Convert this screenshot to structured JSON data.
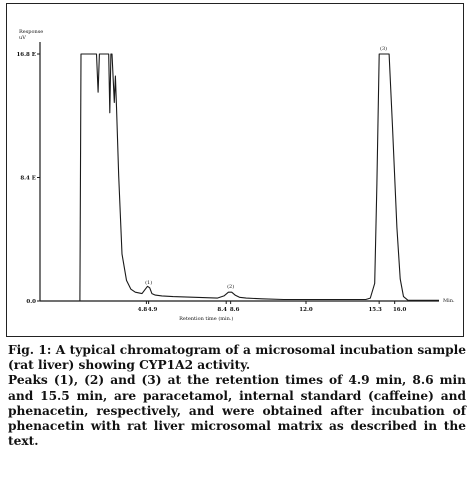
{
  "chart_data": {
    "type": "line",
    "ylabel": "Response\nuV",
    "xlabel": "Retention time (min.)",
    "x_unit_label": "Min.",
    "xlim": [
      0,
      18
    ],
    "ylim": [
      0,
      16.8
    ],
    "y_ticks": [
      {
        "value": 16.8,
        "label": "16.8 E"
      },
      {
        "value": 8.4,
        "label": "8.4 E"
      },
      {
        "value": 0,
        "label": "0.0"
      }
    ],
    "x_ticks": [
      {
        "value": 4.8,
        "label": "4.8"
      },
      {
        "value": 4.9,
        "label": "4.9"
      },
      {
        "value": 8.4,
        "label": "8.4"
      },
      {
        "value": 8.6,
        "label": "8.6"
      },
      {
        "value": 12.0,
        "label": "12.0"
      },
      {
        "value": 15.3,
        "label": "15.3"
      },
      {
        "value": 16.0,
        "label": "16.0"
      }
    ],
    "peaks": [
      {
        "label": "(1)",
        "retention_time": 4.9,
        "height": 0.9
      },
      {
        "label": "(2)",
        "retention_time": 8.6,
        "height": 0.6
      },
      {
        "label": "(3)",
        "retention_time": 15.5,
        "height": 16.8
      }
    ],
    "series": [
      {
        "x": [
          0,
          1.8,
          1.85,
          1.9,
          2.5,
          2.55,
          2.62,
          2.68,
          2.75,
          2.9,
          3.0,
          3.1,
          3.15,
          3.2,
          3.25,
          3.35,
          3.4,
          3.45,
          3.55,
          3.7,
          3.9,
          4.1,
          4.3,
          4.6,
          4.75,
          4.85,
          4.95,
          5.05,
          5.2,
          5.5,
          6.0,
          7.0,
          8.0,
          8.3,
          8.5,
          8.65,
          8.8,
          9.0,
          9.3,
          10.0,
          11.0,
          12.0,
          13.0,
          14.0,
          14.7,
          14.9,
          15.1,
          15.2,
          15.3,
          15.6,
          15.75,
          15.9,
          16.1,
          16.25,
          16.4,
          16.6,
          17.0,
          18.0
        ],
        "y": [
          0,
          0,
          16.8,
          16.8,
          16.8,
          16.8,
          14.2,
          16.8,
          16.8,
          16.8,
          16.8,
          16.8,
          12.8,
          16.8,
          16.8,
          13.5,
          15.3,
          13.2,
          8.5,
          3.2,
          1.4,
          0.8,
          0.6,
          0.5,
          0.8,
          1.0,
          0.9,
          0.5,
          0.4,
          0.35,
          0.3,
          0.25,
          0.2,
          0.35,
          0.6,
          0.6,
          0.4,
          0.25,
          0.2,
          0.15,
          0.1,
          0.1,
          0.1,
          0.1,
          0.1,
          0.2,
          1.2,
          8.0,
          16.8,
          16.8,
          16.8,
          12.0,
          5.0,
          1.5,
          0.3,
          0.05,
          0.05,
          0.05
        ]
      }
    ]
  },
  "caption": {
    "line1": "Fig. 1: A typical chromatogram of a microsomal incubation sample (rat liver) showing CYP1A2 activity.",
    "line2": "Peaks (1), (2) and (3) at the retention times of 4.9 min, 8.6 min and 15.5 min, are paracetamol, internal standard (caffeine) and phenacetin, respectively, and were obtained after incubation of phenacetin with rat liver microsomal matrix as described in the text."
  },
  "colors": {
    "trace": "#1a1a1a",
    "axis": "#1a1a1a"
  }
}
